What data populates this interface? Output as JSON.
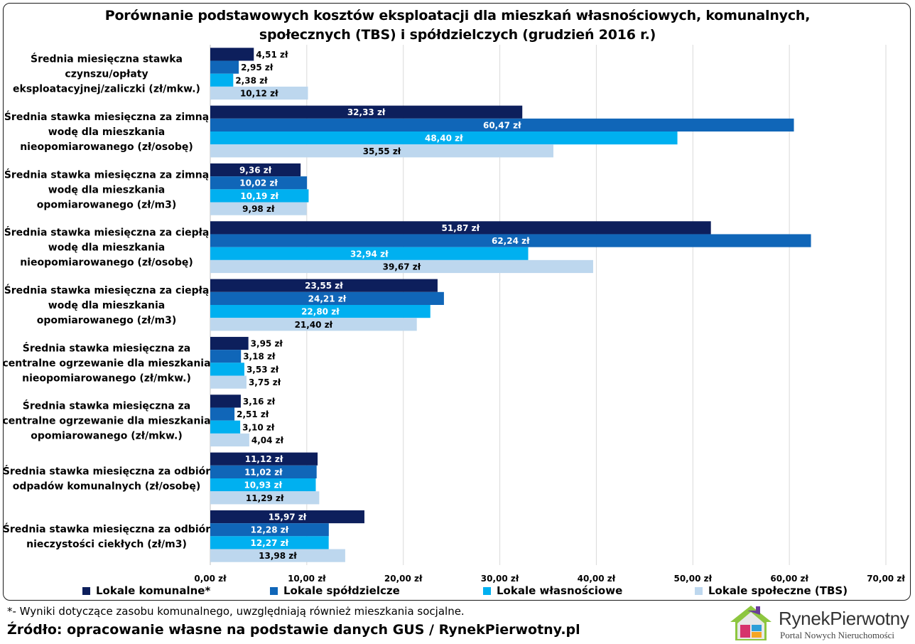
{
  "chart_data": {
    "type": "bar",
    "orientation": "horizontal",
    "title": "Porównanie podstawowych kosztów eksploatacji dla mieszkań własnościowych, komunalnych, społecznych (TBS) i spółdzielczych (grudzień 2016 r.)",
    "title_lines": [
      "Porównanie podstawowych kosztów eksploatacji dla mieszkań własnościowych, komunalnych,",
      "społecznych (TBS) i spółdzielczych (grudzień 2016 r.)"
    ],
    "categories": [
      [
        "Średnia miesięczna stawka",
        "czynszu/opłaty",
        "eksploatacyjnej/zaliczki (zł/mkw.)"
      ],
      [
        "Średnia stawka miesięczna za zimną",
        "wodę dla mieszkania",
        "nieopomiarowanego (zł/osobę)"
      ],
      [
        "Średnia stawka miesięczna za zimną",
        "wodę dla mieszkania",
        "opomiarowanego (zł/m3)"
      ],
      [
        "Średnia stawka miesięczna za ciepłą",
        "wodę dla mieszkania",
        "nieopomiarowanego (zł/osobę)"
      ],
      [
        "Średnia stawka miesięczna za ciepłą",
        "wodę dla mieszkania",
        "opomiarowanego (zł/m3)"
      ],
      [
        "Średnia stawka miesięczna za",
        "centralne ogrzewanie dla mieszkania",
        "nieopomiarowanego (zł/mkw.)"
      ],
      [
        "Średnia stawka miesięczna za",
        "centralne ogrzewanie dla mieszkania",
        "opomiarowanego (zł/mkw.)"
      ],
      [
        "Średnia stawka miesięczna za odbiór",
        "odpadów komunalnych (zł/osobę)"
      ],
      [
        "Średnia stawka miesięczna za odbiór",
        "nieczystości ciekłych (zł/m3)"
      ]
    ],
    "series": [
      {
        "name": "Lokale komunalne*",
        "color": "#0d1f5c",
        "label_color": "#ffffff",
        "values": [
          4.51,
          32.33,
          9.36,
          51.87,
          23.55,
          3.95,
          3.16,
          11.12,
          15.97
        ],
        "labels": [
          "4,51 zł",
          "32,33 zł",
          "9,36 zł",
          "51,87 zł",
          "23,55 zł",
          "3,95 zł",
          "3,16 zł",
          "11,12 zł",
          "15,97 zł"
        ]
      },
      {
        "name": "Lokale spółdzielcze",
        "color": "#1066b8",
        "label_color": "#ffffff",
        "values": [
          2.95,
          60.47,
          10.02,
          62.24,
          24.21,
          3.18,
          2.51,
          11.02,
          12.28
        ],
        "labels": [
          "2,95 zł",
          "60,47 zł",
          "10,02 zł",
          "62,24 zł",
          "24,21 zł",
          "3,18 zł",
          "2,51 zł",
          "11,02 zł",
          "12,28 zł"
        ]
      },
      {
        "name": "Lokale własnościowe",
        "color": "#00b0f0",
        "label_color": "#ffffff",
        "values": [
          2.38,
          48.4,
          10.19,
          32.94,
          22.8,
          3.53,
          3.1,
          10.93,
          12.27
        ],
        "labels": [
          "2,38 zł",
          "48,40 zł",
          "10,19 zł",
          "32,94 zł",
          "22,80 zł",
          "3,53 zł",
          "3,10 zł",
          "10,93 zł",
          "12,27 zł"
        ]
      },
      {
        "name": "Lokale społeczne (TBS)",
        "color": "#bdd7ee",
        "label_color": "#000000",
        "values": [
          10.12,
          35.55,
          9.98,
          39.67,
          21.4,
          3.75,
          4.04,
          11.29,
          13.98
        ],
        "labels": [
          "10,12 zł",
          "35,55 zł",
          "9,98 zł",
          "39,67 zł",
          "21,40 zł",
          "3,75 zł",
          "4,04 zł",
          "11,29 zł",
          "13,98 zł"
        ]
      }
    ],
    "x_ticks": [
      0,
      10,
      20,
      30,
      40,
      50,
      60,
      70
    ],
    "x_tick_labels": [
      "0,00 zł",
      "10,00 zł",
      "20,00 zł",
      "30,00 zł",
      "40,00 zł",
      "50,00 zł",
      "60,00 zł",
      "70,00 zł"
    ],
    "xlim": [
      0,
      70
    ],
    "grid": true,
    "legend_position": "bottom"
  },
  "footnote": "*- Wyniki dotyczące zasobu komunalnego, uwzględniają również mieszkania socjalne.",
  "source": "Źródło: opracowanie własne na podstawie danych GUS / RynekPierwotny.pl",
  "logo": {
    "name_part1": "Rynek",
    "name_part2": "Pierwotny",
    "tagline": "Portal Nowych Nieruchomości"
  }
}
